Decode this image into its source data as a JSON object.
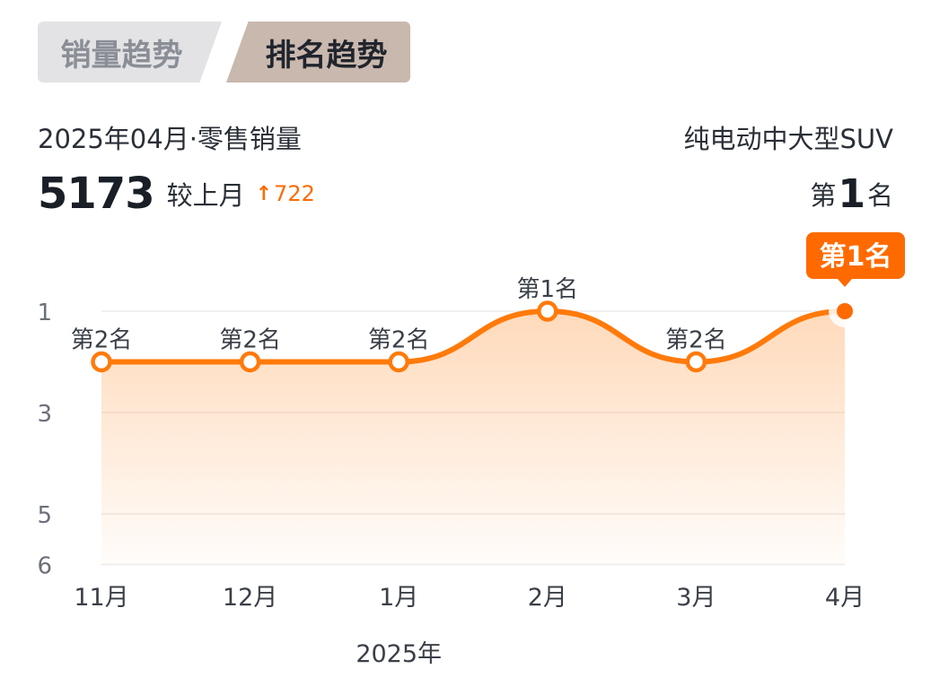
{
  "tabs": {
    "sales_label": "销量趋势",
    "rank_label": "排名趋势",
    "active": "rank"
  },
  "header": {
    "period": "2025年04月·零售销量",
    "category": "纯电动中大型SUV",
    "sales_value": "5173",
    "compare_label": "较上月",
    "delta_value": "722",
    "delta_direction": "up",
    "rank_prefix": "第",
    "rank_number": "1",
    "rank_suffix": "名"
  },
  "colors": {
    "accent": "#ff6a00",
    "line": "#ff7a0a",
    "active_tab_bg": "#c9b8ae",
    "inactive_tab_bg": "#e3e3e5",
    "grid": "#ececec",
    "axis_text": "#6b7079"
  },
  "icons": {
    "delta": "arrow-up-icon"
  },
  "chart_data": {
    "type": "line",
    "x": [
      "11月",
      "12月",
      "1月",
      "2月",
      "3月",
      "4月"
    ],
    "year_label": "2025年",
    "series": [
      {
        "values": [
          2,
          2,
          2,
          1,
          2,
          1
        ],
        "point_labels": [
          "第2名",
          "第2名",
          "第2名",
          "第1名",
          "第2名",
          "第1名"
        ]
      }
    ],
    "y_ticks": [
      1,
      3,
      5,
      6
    ],
    "ylim": [
      1,
      6
    ],
    "y_inverted": true,
    "grid": true,
    "highlight_index": 5
  }
}
